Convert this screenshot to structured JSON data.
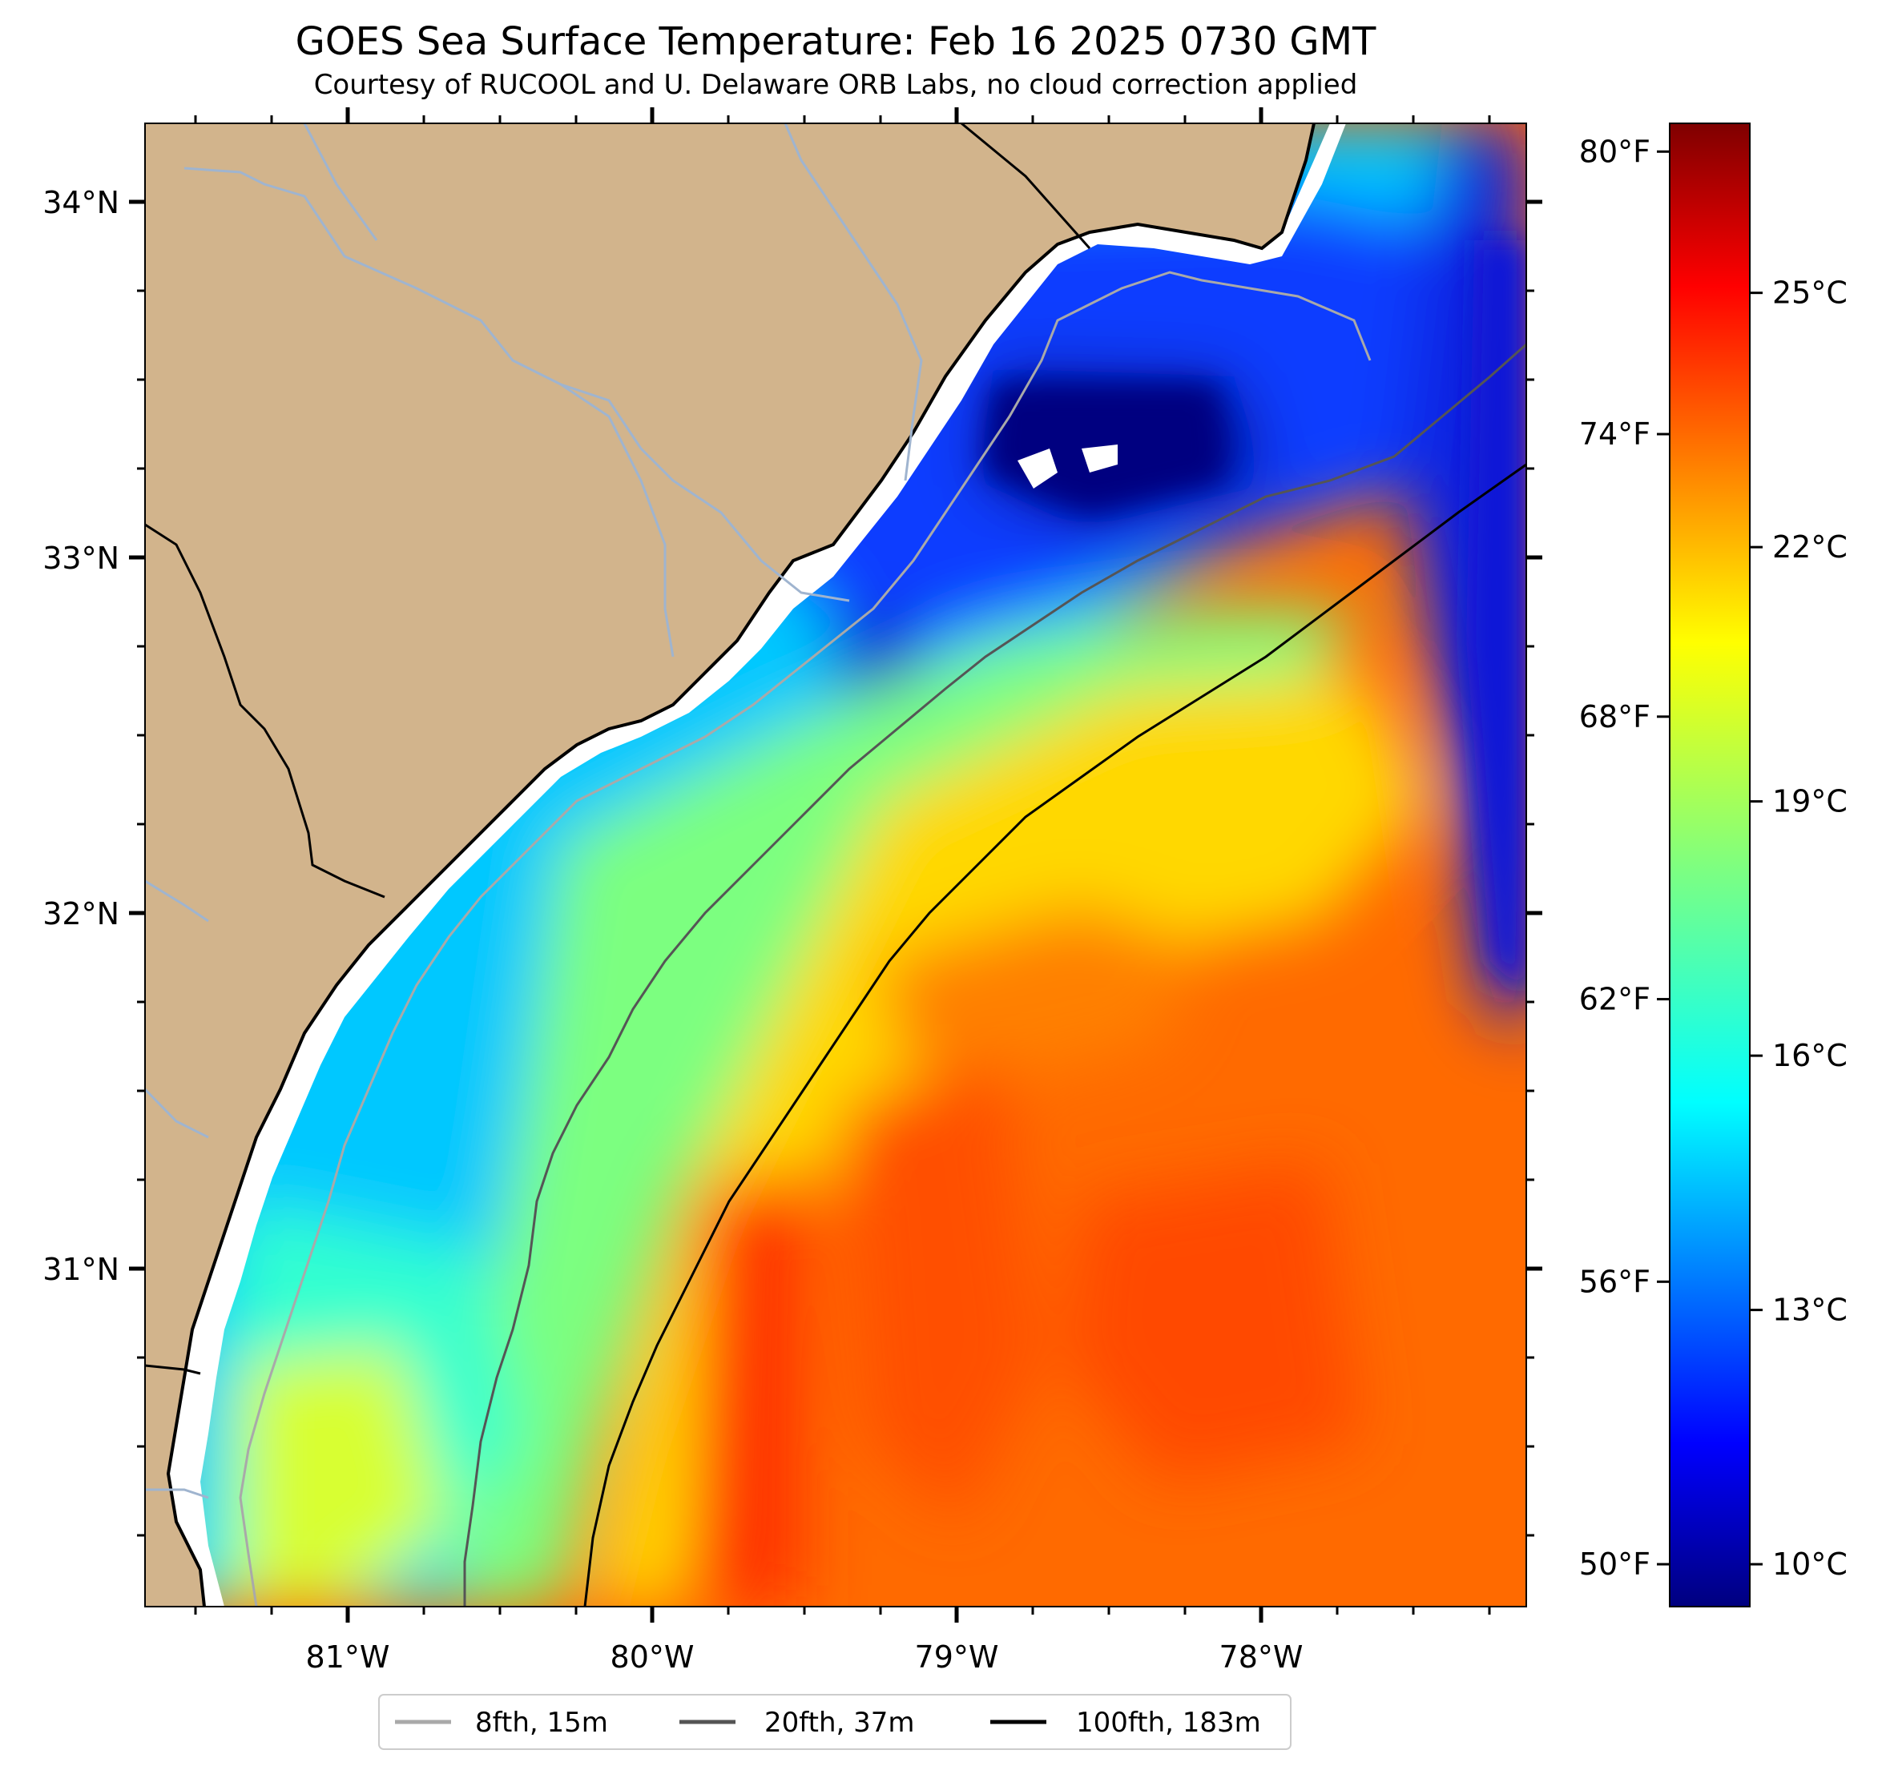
{
  "title": "GOES Sea Surface Temperature: Feb 16 2025 0730 GMT",
  "subtitle": "Courtesy of RUCOOL and U. Delaware ORB Labs, no cloud correction applied",
  "map": {
    "lat_ticks": [
      {
        "value": 34,
        "label": "34°N"
      },
      {
        "value": 33,
        "label": "33°N"
      },
      {
        "value": 32,
        "label": "32°N"
      },
      {
        "value": 31,
        "label": "31°N"
      }
    ],
    "lon_ticks": [
      {
        "value": -81,
        "label": "81°W"
      },
      {
        "value": -80,
        "label": "80°W"
      },
      {
        "value": -79,
        "label": "79°W"
      },
      {
        "value": -78,
        "label": "78°W"
      }
    ],
    "colors": {
      "land": "#d2b48c",
      "coast": "#000000",
      "rivers": "#9fb4cf"
    }
  },
  "colorbar": {
    "fahrenheit_labels": [
      "80°F",
      "74°F",
      "68°F",
      "62°F",
      "56°F",
      "50°F"
    ],
    "celsius_labels": [
      "25°C",
      "22°C",
      "19°C",
      "16°C",
      "13°C",
      "10°C"
    ],
    "fahrenheit_values": [
      80,
      74,
      68,
      62,
      56,
      50
    ],
    "celsius_values": [
      25,
      22,
      19,
      16,
      13,
      10
    ],
    "range_c": [
      9.5,
      27.0
    ],
    "colormap": "jet"
  },
  "legend": {
    "items": [
      {
        "label": "8fth, 15m",
        "color": "#a9a9a9"
      },
      {
        "label": "20fth, 37m",
        "color": "#555555"
      },
      {
        "label": "100fth, 183m",
        "color": "#000000"
      }
    ]
  }
}
